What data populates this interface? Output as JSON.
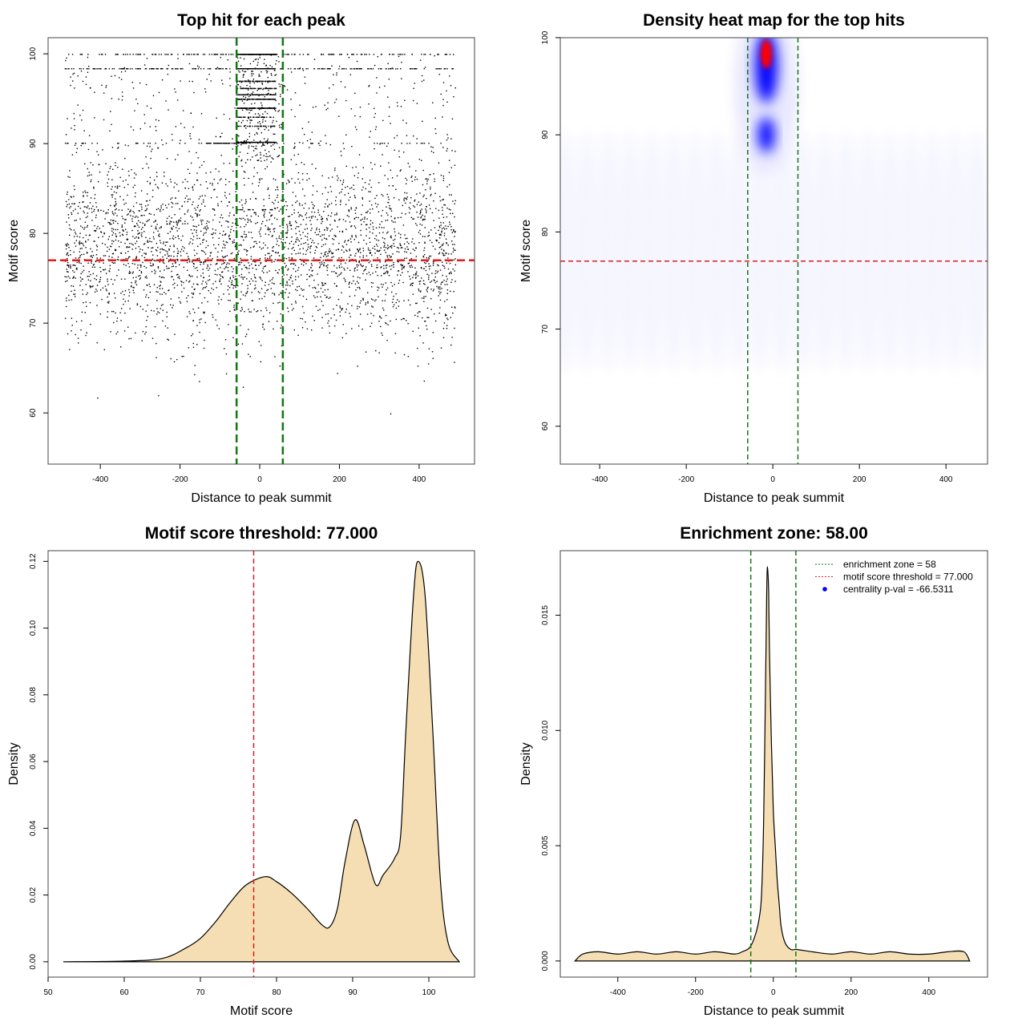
{
  "chart_data": [
    {
      "type": "scatter",
      "title": "Top hit for each peak",
      "xlabel": "Distance to peak summit",
      "ylabel": "Motif score",
      "xlim": [
        -531,
        539
      ],
      "ylim": [
        54.3,
        101.8
      ],
      "xticks": [
        "-400",
        "-200",
        "0",
        "200",
        "400"
      ],
      "yticks": [
        "60",
        "70",
        "80",
        "90",
        "100"
      ],
      "hlines": [
        {
          "y": 77,
          "color": "#e41a1c"
        }
      ],
      "vlines": [
        {
          "x": -58,
          "color": "#117711"
        },
        {
          "x": 58,
          "color": "#117711"
        }
      ],
      "point_color": "#000000"
    },
    {
      "type": "heatmap",
      "title": "Density heat map for the top hits",
      "xlabel": "Distance to peak summit",
      "ylabel": "Motif score",
      "xlim": [
        -491,
        496
      ],
      "ylim": [
        56.1,
        100
      ],
      "xticks": [
        "-400",
        "-200",
        "0",
        "200",
        "400"
      ],
      "yticks": [
        "60",
        "70",
        "80",
        "90",
        "100"
      ],
      "hotspots": [
        {
          "x": -15,
          "y": 98.5,
          "level": "max"
        },
        {
          "x": -15,
          "y": 90,
          "level": "high"
        }
      ],
      "colors": {
        "low": "#f5f5ff",
        "mid": "#0000ff",
        "high": "#ff0000"
      },
      "hlines": [
        {
          "y": 77,
          "color": "#e41a1c"
        }
      ],
      "vlines": [
        {
          "x": -58,
          "color": "#117711"
        },
        {
          "x": 58,
          "color": "#117711"
        }
      ]
    },
    {
      "type": "area",
      "title": "Motif score threshold: 77.000",
      "xlabel": "Motif score",
      "ylabel": "Density",
      "xlim": [
        50,
        106
      ],
      "ylim": [
        -0.0046,
        0.1232
      ],
      "xticks": [
        "50",
        "60",
        "70",
        "80",
        "90",
        "100"
      ],
      "yticks": [
        "0.00",
        "0.02",
        "0.04",
        "0.06",
        "0.08",
        "0.10",
        "0.12"
      ],
      "fill": "#f5deb3",
      "x": [
        52,
        60,
        65,
        68,
        70,
        72,
        74,
        76,
        78.5,
        80,
        82,
        84,
        86,
        87,
        88,
        89,
        90.3,
        91.5,
        93,
        94,
        95.5,
        96.3,
        97,
        98,
        98.6,
        99.5,
        100.5,
        101.5,
        102.5,
        104
      ],
      "y": [
        0,
        0.0002,
        0.001,
        0.004,
        0.007,
        0.012,
        0.018,
        0.023,
        0.0255,
        0.024,
        0.0205,
        0.016,
        0.011,
        0.0105,
        0.016,
        0.03,
        0.0425,
        0.035,
        0.0232,
        0.026,
        0.031,
        0.038,
        0.07,
        0.11,
        0.12,
        0.11,
        0.07,
        0.025,
        0.006,
        0
      ],
      "vlines": [
        {
          "x": 77,
          "color": "#e41a1c"
        }
      ]
    },
    {
      "type": "area",
      "title": "Enrichment zone: 58.00",
      "xlabel": "Distance to peak summit",
      "ylabel": "Density",
      "xlim": [
        -548,
        551
      ],
      "ylim": [
        -0.0007,
        0.0178
      ],
      "xticks": [
        "-400",
        "-200",
        "0",
        "200",
        "400"
      ],
      "yticks": [
        "0.000",
        "0.005",
        "0.010",
        "0.015"
      ],
      "fill": "#f5deb3",
      "x": [
        -510,
        -490,
        -450,
        -400,
        -350,
        -300,
        -250,
        -200,
        -150,
        -100,
        -80,
        -60,
        -45,
        -35,
        -30,
        -25,
        -20,
        -17,
        -15,
        -12,
        -10,
        -5,
        0,
        5,
        10,
        15,
        20,
        30,
        45,
        60,
        100,
        150,
        200,
        250,
        300,
        350,
        400,
        450,
        490,
        505
      ],
      "y": [
        0,
        0.0003,
        0.0004,
        0.0003,
        0.0004,
        0.0003,
        0.0004,
        0.0003,
        0.0004,
        0.0003,
        0.0004,
        0.0006,
        0.0012,
        0.002,
        0.003,
        0.006,
        0.012,
        0.016,
        0.0171,
        0.016,
        0.0135,
        0.0095,
        0.0065,
        0.005,
        0.0035,
        0.0025,
        0.0015,
        0.0008,
        0.0005,
        0.0005,
        0.0004,
        0.0003,
        0.0004,
        0.0003,
        0.0004,
        0.0003,
        0.0003,
        0.0004,
        0.0004,
        0
      ],
      "vlines": [
        {
          "x": -58,
          "color": "#117711"
        },
        {
          "x": 58,
          "color": "#117711"
        }
      ],
      "legend": {
        "position": "top-right",
        "entries": [
          {
            "label": "enrichment zone = 58",
            "color": "#117711",
            "style": "dotted"
          },
          {
            "label": "motif score threshold = 77.000",
            "color": "#e41a1c",
            "style": "dotted"
          },
          {
            "label": "centrality p-val = -66.5311",
            "color": "#0000ff",
            "style": "point"
          }
        ]
      }
    }
  ]
}
